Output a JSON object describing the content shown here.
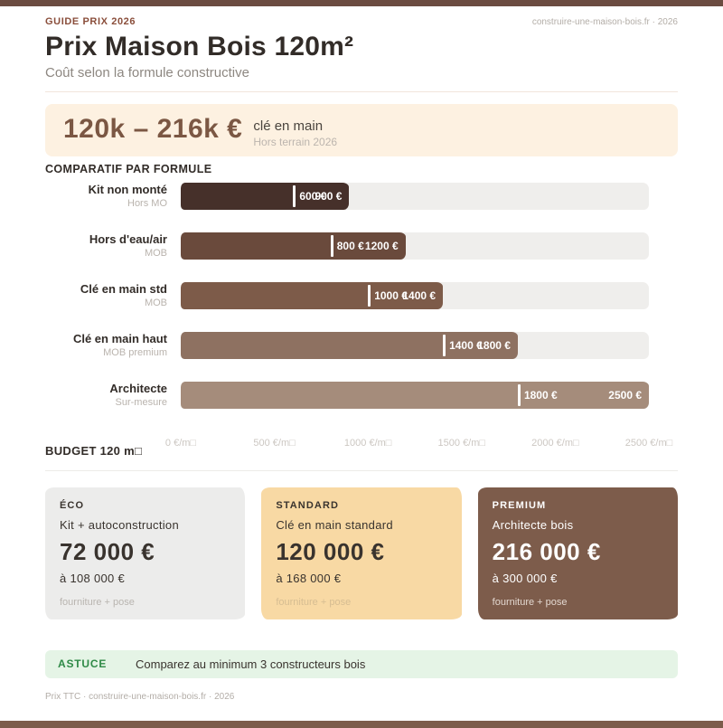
{
  "header": {
    "eyebrow": "GUIDE PRIX 2026",
    "source": "construire-une-maison-bois.fr · 2026",
    "title": "Prix Maison Bois 120m²",
    "subtitle": "Coût selon la formule constructive"
  },
  "hero": {
    "range": "120k – 216k €",
    "label": "clé en main",
    "note": "Hors terrain 2026"
  },
  "chart_data": {
    "type": "bar",
    "orientation": "horizontal",
    "title": "COMPARATIF PAR FORMULE",
    "unit_label": "€/m□",
    "xlim": [
      0,
      2500
    ],
    "grid": false,
    "axis_ticks": [
      {
        "value": 0,
        "label": "0 €/m□"
      },
      {
        "value": 500,
        "label": "500 €/m□"
      },
      {
        "value": 1000,
        "label": "1000 €/m□"
      },
      {
        "value": 1500,
        "label": "1500 €/m□"
      },
      {
        "value": 2000,
        "label": "2000 €/m□"
      },
      {
        "value": 2500,
        "label": "2500 €/m□"
      }
    ],
    "rows": [
      {
        "label": "Kit non monté",
        "sublabel": "Hors MO",
        "min": 600,
        "max": 900,
        "min_label": "600 €",
        "max_label": "900 €",
        "color": "#46302a"
      },
      {
        "label": "Hors d'eau/air",
        "sublabel": "MOB",
        "min": 800,
        "max": 1200,
        "min_label": "800 €",
        "max_label": "1200 €",
        "color": "#6a4a3c"
      },
      {
        "label": "Clé en main std",
        "sublabel": "MOB",
        "min": 1000,
        "max": 1400,
        "min_label": "1000 €",
        "max_label": "1400 €",
        "color": "#7d5b49"
      },
      {
        "label": "Clé en main haut",
        "sublabel": "MOB premium",
        "min": 1400,
        "max": 1800,
        "min_label": "1400 €",
        "max_label": "1800 €",
        "color": "#8e7161"
      },
      {
        "label": "Architecte",
        "sublabel": "Sur-mesure",
        "min": 1800,
        "max": 2500,
        "min_label": "1800 €",
        "max_label": "2500 €",
        "color": "#a58c7b"
      }
    ]
  },
  "budget": {
    "section_label": "BUDGET 120 m□",
    "cards": [
      {
        "tier": "ÉCO",
        "desc": "Kit + autoconstruction",
        "price": "72 000 €",
        "range": "à 108 000 €",
        "note": "fourniture + pose",
        "bg": "#ececeb",
        "fg": "#39332e",
        "note_color": "#b9b5b0"
      },
      {
        "tier": "STANDARD",
        "desc": "Clé en main standard",
        "price": "120 000 €",
        "range": "à 168 000 €",
        "note": "fourniture + pose",
        "bg": "#f8d9a4",
        "fg": "#39332e",
        "note_color": "#d6bd92"
      },
      {
        "tier": "PREMIUM",
        "desc": "Architecte bois",
        "price": "216 000 €",
        "range": "à 300 000 €",
        "note": "fourniture + pose",
        "bg": "#7d5c4b",
        "fg": "#ffffff",
        "note_color": "#e3d8d0"
      }
    ]
  },
  "tip": {
    "label": "ASTUCE",
    "text": "Comparez au minimum 3 constructeurs bois"
  },
  "footer": "Prix TTC · construire-une-maison-bois.fr · 2026",
  "colors": {
    "accent_bar_top": "#6b4c41",
    "accent_bar_bottom": "#7d5c4b",
    "eyebrow": "#8a4e3b",
    "hero_bg": "#fdf1e1",
    "hero_text": "#7b5743",
    "track": "#efeeec",
    "tip_bg": "#e5f4e6",
    "tip_green": "#2f8a47"
  }
}
